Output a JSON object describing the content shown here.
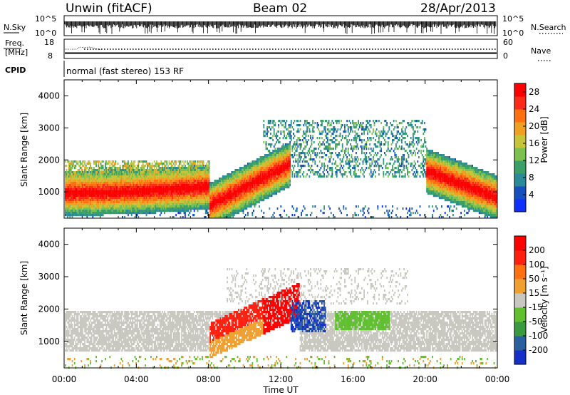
{
  "header": {
    "station": "Unwin (fitACF)",
    "beam": "Beam 02",
    "date": "28/Apr/2013"
  },
  "summary_panels": {
    "nsky_label": "N.Sky",
    "nsky_ticks": [
      "10^5",
      "10^0"
    ],
    "nsearch_label": "N.Search",
    "nsearch_ticks": [
      "10^5",
      "10^0"
    ],
    "freq_label": "Freq.",
    "freq_unit": "[MHz]",
    "freq_ticks": [
      "18",
      "8"
    ],
    "nave_label": "Nave",
    "nave_ticks": [
      "60",
      "0"
    ],
    "cpid_label": "CPID",
    "cpid_text": "normal (fast stereo) 153 RF"
  },
  "chart_data": [
    {
      "type": "heatmap",
      "panel": "power",
      "ylabel": "Slant Range [km]",
      "y_ticks": [
        "1000",
        "2000",
        "3000",
        "4000"
      ],
      "ylim": [
        180,
        4500
      ],
      "xlim_hours": [
        0,
        24
      ],
      "colorbar_label": "Power [dB]",
      "colorbar_ticks": [
        "4",
        "8",
        "12",
        "16",
        "20",
        "24",
        "28"
      ],
      "colorbar_colors": [
        "#1030ff",
        "#1550c0",
        "#2a8a9a",
        "#3aa068",
        "#7cc050",
        "#c8c438",
        "#f0a020",
        "#ff7010",
        "#ff2a1a",
        "#ff0000"
      ],
      "features": [
        {
          "name": "near-range band",
          "start_h": 0,
          "end_h": 8,
          "center_km": 1000,
          "rising_to_km": 1500,
          "strength": "high"
        },
        {
          "name": "evening band",
          "start_h": 8,
          "end_h": 12.5,
          "start_km": 600,
          "end_km": 1900,
          "strength": "high"
        },
        {
          "name": "post-midnight band",
          "start_h": 20,
          "end_h": 24,
          "start_km": 1700,
          "end_km": 850,
          "strength": "high"
        }
      ]
    },
    {
      "type": "heatmap",
      "panel": "velocity",
      "ylabel": "Slant Range [km]",
      "y_ticks": [
        "1000",
        "2000",
        "3000",
        "4000"
      ],
      "ylim": [
        180,
        4500
      ],
      "xlim_hours": [
        0,
        24
      ],
      "colorbar_label": "Velocity [m s⁻¹]",
      "colorbar_ticks": [
        "200",
        "100",
        "50",
        "15",
        "-15",
        "-50",
        "-100",
        "-200"
      ],
      "colorbar_colors": [
        "#1530c8",
        "#2a60a0",
        "#3a9a40",
        "#60c030",
        "#c8c8c0",
        "#f0a030",
        "#ff7010",
        "#ff2010",
        "#ff0000"
      ],
      "features": [
        {
          "name": "ground scatter",
          "start_h": 0,
          "end_h": 24,
          "center_km": 1300,
          "color": "grey"
        },
        {
          "name": "westward flow",
          "start_h": 8,
          "end_h": 13,
          "start_km": 700,
          "end_km": 2200,
          "color": "orange-red"
        },
        {
          "name": "eastward flow",
          "start_h": 15,
          "end_h": 18,
          "center_km": 1700,
          "color": "green"
        }
      ]
    }
  ],
  "x_axis": {
    "ticks": [
      "00:00",
      "04:00",
      "08:00",
      "12:00",
      "16:00",
      "20:00",
      "00:00"
    ],
    "xlabel": "Time UT"
  }
}
